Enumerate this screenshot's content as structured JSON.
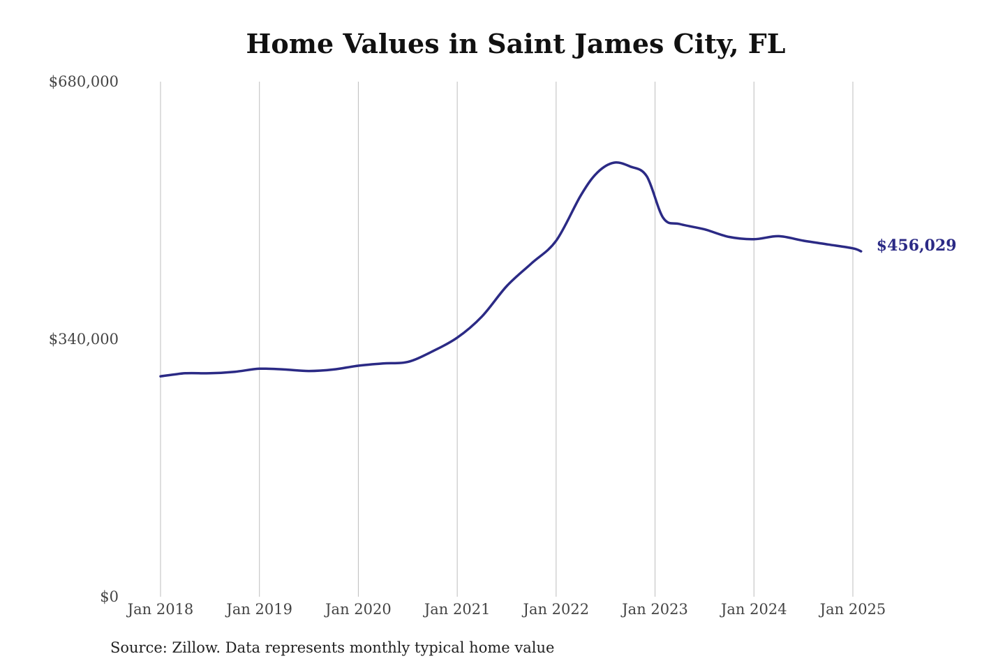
{
  "page": {
    "title": "Home Values in Saint James City, FL",
    "source": "Source: Zillow. Data represents monthly typical home value"
  },
  "chart_data": {
    "type": "line",
    "title": "Home Values in Saint James City, FL",
    "xlabel": "",
    "ylabel": "",
    "ylim": [
      0,
      680000
    ],
    "yticks": [
      0,
      340000,
      680000
    ],
    "ytick_labels": [
      "$0",
      "$340,000",
      "$680,000"
    ],
    "xticks": [
      "Jan 2018",
      "Jan 2019",
      "Jan 2020",
      "Jan 2021",
      "Jan 2022",
      "Jan 2023",
      "Jan 2024",
      "Jan 2025"
    ],
    "grid": "vertical",
    "color": "#2b2a85",
    "end_label": "$456,029",
    "series": [
      {
        "x": [
          "2018-01",
          "2018-04",
          "2018-07",
          "2018-10",
          "2019-01",
          "2019-04",
          "2019-07",
          "2019-10",
          "2020-01",
          "2020-04",
          "2020-07",
          "2020-10",
          "2021-01",
          "2021-04",
          "2021-07",
          "2021-10",
          "2022-01",
          "2022-04",
          "2022-06",
          "2022-08",
          "2022-10",
          "2022-12",
          "2023-02",
          "2023-04",
          "2023-07",
          "2023-10",
          "2024-01",
          "2024-04",
          "2024-07",
          "2024-10",
          "2025-01",
          "2025-02"
        ],
        "values": [
          291000,
          295000,
          295000,
          297000,
          301000,
          300000,
          298000,
          300000,
          305000,
          308000,
          310000,
          324000,
          342000,
          370000,
          410000,
          440000,
          470000,
          530000,
          560000,
          573000,
          568000,
          555000,
          500000,
          492000,
          485000,
          475000,
          472000,
          476000,
          470000,
          465000,
          460000,
          456029
        ]
      }
    ]
  }
}
